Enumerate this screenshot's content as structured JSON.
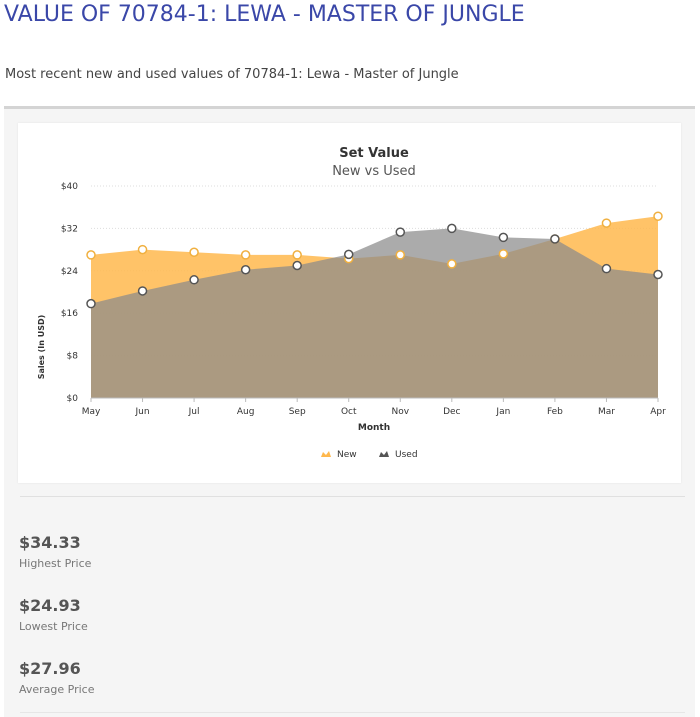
{
  "page": {
    "title": "VALUE OF 70784-1: LEWA - MASTER OF JUNGLE",
    "subtitle": "Most recent new and used values of 70784-1: Lewa - Master of Jungle"
  },
  "chart_data": {
    "type": "area",
    "title": "Set Value",
    "subtitle": "New vs Used",
    "xlabel": "Month",
    "ylabel": "Sales (In USD)",
    "categories": [
      "May",
      "Jun",
      "Jul",
      "Aug",
      "Sep",
      "Oct",
      "Nov",
      "Dec",
      "Jan",
      "Feb",
      "Mar",
      "Apr"
    ],
    "ylim": [
      0,
      40
    ],
    "yticks": [
      0,
      8,
      16,
      24,
      32,
      40
    ],
    "ytick_labels": [
      "$0",
      "$8",
      "$16",
      "$24",
      "$32",
      "$40"
    ],
    "grid": true,
    "legend_position": "bottom-center",
    "series": [
      {
        "name": "New",
        "color": "#ffb84d",
        "marker_stroke": "#f0b040",
        "values": [
          27.0,
          28.0,
          27.5,
          27.0,
          27.0,
          26.3,
          27.0,
          25.3,
          27.2,
          30.0,
          33.0,
          34.3
        ]
      },
      {
        "name": "Used",
        "color": "#8a8a8a",
        "marker_stroke": "#555555",
        "values": [
          17.8,
          20.2,
          22.3,
          24.2,
          25.0,
          27.1,
          31.3,
          32.0,
          30.3,
          30.0,
          24.4,
          23.3
        ]
      }
    ]
  },
  "stats": {
    "highest": {
      "value": "$34.33",
      "label": "Highest Price"
    },
    "lowest": {
      "value": "$24.93",
      "label": "Lowest Price"
    },
    "average": {
      "value": "$27.96",
      "label": "Average Price"
    }
  }
}
